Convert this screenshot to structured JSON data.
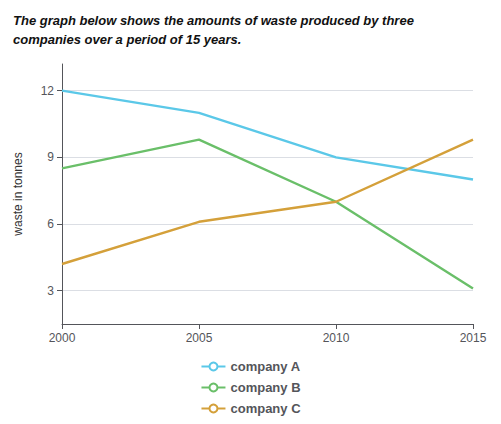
{
  "chart_data": {
    "type": "line",
    "title": "The graph below shows the amounts of waste produced by three\ncompanies over a period of 15 years.",
    "y_label": "waste in tonnes",
    "x": [
      2000,
      2005,
      2010,
      2015
    ],
    "series": [
      {
        "name": "company A",
        "color": "#5bc8e8",
        "values": [
          12.0,
          11.0,
          9.0,
          8.0
        ]
      },
      {
        "name": "company B",
        "color": "#6abf69",
        "values": [
          8.5,
          9.8,
          7.0,
          3.1
        ]
      },
      {
        "name": "company C",
        "color": "#d4a03a",
        "values": [
          4.2,
          6.1,
          7.0,
          9.8
        ]
      }
    ],
    "xlim": [
      2000,
      2015
    ],
    "xticks": [
      2000,
      2005,
      2010,
      2015
    ],
    "ylim": [
      1.5,
      13.2
    ],
    "yticks": [
      3,
      6,
      9,
      12
    ],
    "grid": true,
    "legend": "bottom"
  }
}
